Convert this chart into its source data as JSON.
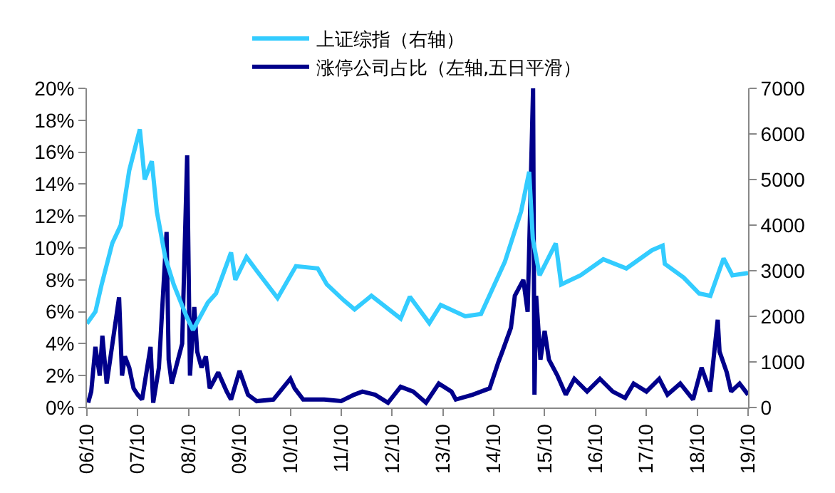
{
  "chart_data": {
    "type": "line",
    "legend": "top",
    "grid": false,
    "marker": "none",
    "line_style": "solid",
    "xlim": [
      "2006-10-01",
      "2019-10-01"
    ],
    "xticks": [
      {
        "value": "2006-10-01",
        "label": "06/10"
      },
      {
        "value": "2007-10-01",
        "label": "07/10"
      },
      {
        "value": "2008-10-01",
        "label": "08/10"
      },
      {
        "value": "2009-10-01",
        "label": "09/10"
      },
      {
        "value": "2010-10-01",
        "label": "10/10"
      },
      {
        "value": "2011-10-01",
        "label": "11/10"
      },
      {
        "value": "2012-10-01",
        "label": "12/10"
      },
      {
        "value": "2013-10-01",
        "label": "13/10"
      },
      {
        "value": "2014-10-01",
        "label": "14/10"
      },
      {
        "value": "2015-10-01",
        "label": "15/10"
      },
      {
        "value": "2016-10-01",
        "label": "16/10"
      },
      {
        "value": "2017-10-01",
        "label": "17/10"
      },
      {
        "value": "2018-10-01",
        "label": "18/10"
      },
      {
        "value": "2019-10-01",
        "label": "19/10"
      }
    ],
    "ylim": [
      0,
      20
    ],
    "yticks": [
      {
        "value": 0,
        "label": "0%"
      },
      {
        "value": 2,
        "label": "2%"
      },
      {
        "value": 4,
        "label": "4%"
      },
      {
        "value": 6,
        "label": "6%"
      },
      {
        "value": 8,
        "label": "8%"
      },
      {
        "value": 10,
        "label": "10%"
      },
      {
        "value": 12,
        "label": "12%"
      },
      {
        "value": 14,
        "label": "14%"
      },
      {
        "value": 16,
        "label": "16%"
      },
      {
        "value": 18,
        "label": "18%"
      },
      {
        "value": 20,
        "label": "20%"
      }
    ],
    "y2lim": [
      0,
      7000
    ],
    "y2ticks": [
      0,
      1000,
      2000,
      3000,
      4000,
      5000,
      6000,
      7000
    ],
    "series": [
      {
        "name": "上证综指（右轴）",
        "color": "#33ccff",
        "axis": "y2",
        "x": [
          "2006-10-01",
          "2006-12-01",
          "2007-01-15",
          "2007-04-01",
          "2007-06-01",
          "2007-08-01",
          "2007-10-16",
          "2007-11-20",
          "2008-01-10",
          "2008-02-15",
          "2008-04-15",
          "2008-06-15",
          "2008-09-15",
          "2008-11-01",
          "2009-02-15",
          "2009-04-15",
          "2009-08-01",
          "2009-09-01",
          "2009-11-20",
          "2010-02-01",
          "2010-07-01",
          "2010-11-10",
          "2011-04-15",
          "2011-06-20",
          "2011-10-20",
          "2012-01-05",
          "2012-05-05",
          "2012-12-01",
          "2013-02-05",
          "2013-06-25",
          "2013-09-15",
          "2014-03-10",
          "2014-07-01",
          "2014-12-20",
          "2015-04-15",
          "2015-06-12",
          "2015-07-08",
          "2015-08-26",
          "2015-12-20",
          "2016-01-28",
          "2016-06-15",
          "2016-11-25",
          "2017-05-10",
          "2017-11-10",
          "2018-01-25",
          "2018-02-10",
          "2018-06-25",
          "2018-10-15",
          "2019-01-03",
          "2019-04-08",
          "2019-06-10",
          "2019-10-01"
        ],
        "values": [
          1840,
          2100,
          2700,
          3600,
          4000,
          5200,
          6100,
          5000,
          5400,
          4300,
          3300,
          2700,
          2000,
          1700,
          2300,
          2500,
          3400,
          2800,
          3300,
          3000,
          2400,
          3100,
          3050,
          2700,
          2350,
          2150,
          2450,
          1950,
          2430,
          1850,
          2250,
          2000,
          2050,
          3200,
          4300,
          5170,
          3700,
          2900,
          3600,
          2700,
          2900,
          3250,
          3050,
          3450,
          3550,
          3150,
          2850,
          2500,
          2450,
          3270,
          2900,
          2950
        ]
      },
      {
        "name": "涨停公司占比（左轴,五日平滑）",
        "color": "#00008b",
        "x": [
          "2006-10-10",
          "2006-11-01",
          "2006-12-01",
          "2007-01-01",
          "2007-01-20",
          "2007-02-20",
          "2007-05-20",
          "2007-06-10",
          "2007-07-01",
          "2007-08-01",
          "2007-09-01",
          "2007-10-01",
          "2007-11-01",
          "2008-01-01",
          "2008-01-20",
          "2008-03-01",
          "2008-04-25",
          "2008-05-10",
          "2008-06-01",
          "2008-07-01",
          "2008-08-15",
          "2008-09-20",
          "2008-10-10",
          "2008-11-10",
          "2008-12-01",
          "2009-01-01",
          "2009-02-01",
          "2009-03-01",
          "2009-05-01",
          "2009-07-01",
          "2009-08-01",
          "2009-10-01",
          "2009-12-01",
          "2010-02-01",
          "2010-06-01",
          "2010-10-01",
          "2010-11-01",
          "2011-01-01",
          "2011-06-01",
          "2011-10-01",
          "2012-01-01",
          "2012-03-01",
          "2012-06-01",
          "2012-09-01",
          "2012-12-01",
          "2013-03-01",
          "2013-06-01",
          "2013-09-01",
          "2013-12-01",
          "2014-01-01",
          "2014-05-01",
          "2014-09-01",
          "2014-11-01",
          "2014-12-01",
          "2015-02-01",
          "2015-03-01",
          "2015-05-01",
          "2015-06-01",
          "2015-07-10",
          "2015-07-20",
          "2015-08-01",
          "2015-09-01",
          "2015-10-01",
          "2015-11-01",
          "2016-01-01",
          "2016-03-01",
          "2016-05-01",
          "2016-08-01",
          "2016-11-01",
          "2017-02-01",
          "2017-05-01",
          "2017-07-01",
          "2017-10-01",
          "2018-01-01",
          "2018-03-01",
          "2018-06-01",
          "2018-09-01",
          "2018-11-01",
          "2019-01-01",
          "2019-02-25",
          "2019-03-10",
          "2019-05-01",
          "2019-06-01",
          "2019-08-01",
          "2019-10-01"
        ],
        "values": [
          0.3,
          1.0,
          3.8,
          2.0,
          4.5,
          1.5,
          6.9,
          2.0,
          3.2,
          2.5,
          1.2,
          0.8,
          0.5,
          3.8,
          0.3,
          2.5,
          11,
          3,
          1.5,
          2.5,
          4,
          15.8,
          2,
          6.3,
          3.5,
          2.5,
          3.2,
          1.2,
          2.2,
          1.0,
          0.5,
          2.3,
          0.8,
          0.4,
          0.5,
          1.8,
          1.2,
          0.5,
          0.5,
          0.4,
          0.8,
          1.0,
          0.8,
          0.3,
          1.3,
          1.0,
          0.3,
          1.5,
          1.0,
          0.5,
          0.8,
          1.2,
          2.8,
          3.5,
          5,
          7,
          8,
          6,
          20,
          0.8,
          7,
          3,
          4.8,
          3,
          2,
          0.8,
          1.8,
          1.0,
          1.8,
          1.0,
          0.6,
          1.5,
          1.0,
          1.8,
          0.8,
          1.5,
          0.5,
          2.5,
          1.0,
          5.5,
          3.5,
          2.2,
          1.0,
          1.5,
          0.8
        ]
      }
    ]
  }
}
